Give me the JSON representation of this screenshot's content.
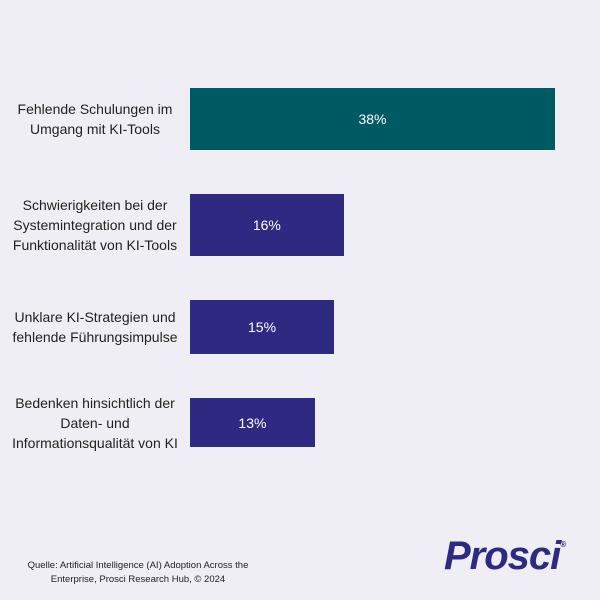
{
  "chart_data": {
    "type": "bar",
    "orientation": "horizontal",
    "categories": [
      "Fehlende Schulungen im\nUmgang mit KI-Tools",
      "Schwierigkeiten bei der\nSystemintegration und der\nFunktionalität von KI-Tools",
      "Unklare KI-Strategien und\nfehlende Führungsimpulse",
      "Bedenken hinsichtlich der\nDaten- und\nInformationsqualität von KI"
    ],
    "values": [
      38,
      16,
      15,
      13
    ],
    "value_labels": [
      "38%",
      "16%",
      "15%",
      "13%"
    ],
    "xlim": [
      0,
      38
    ],
    "colors": [
      "#005a63",
      "#2e2a82",
      "#2e2a82",
      "#2e2a82"
    ],
    "grid": false,
    "legend": "none"
  },
  "footer": {
    "source": "Quelle: Artificial Intelligence (AI) Adoption Across the\nEnterprise, Prosci Research Hub, © 2024",
    "logo_text": "Prosci",
    "logo_mark": "®"
  }
}
